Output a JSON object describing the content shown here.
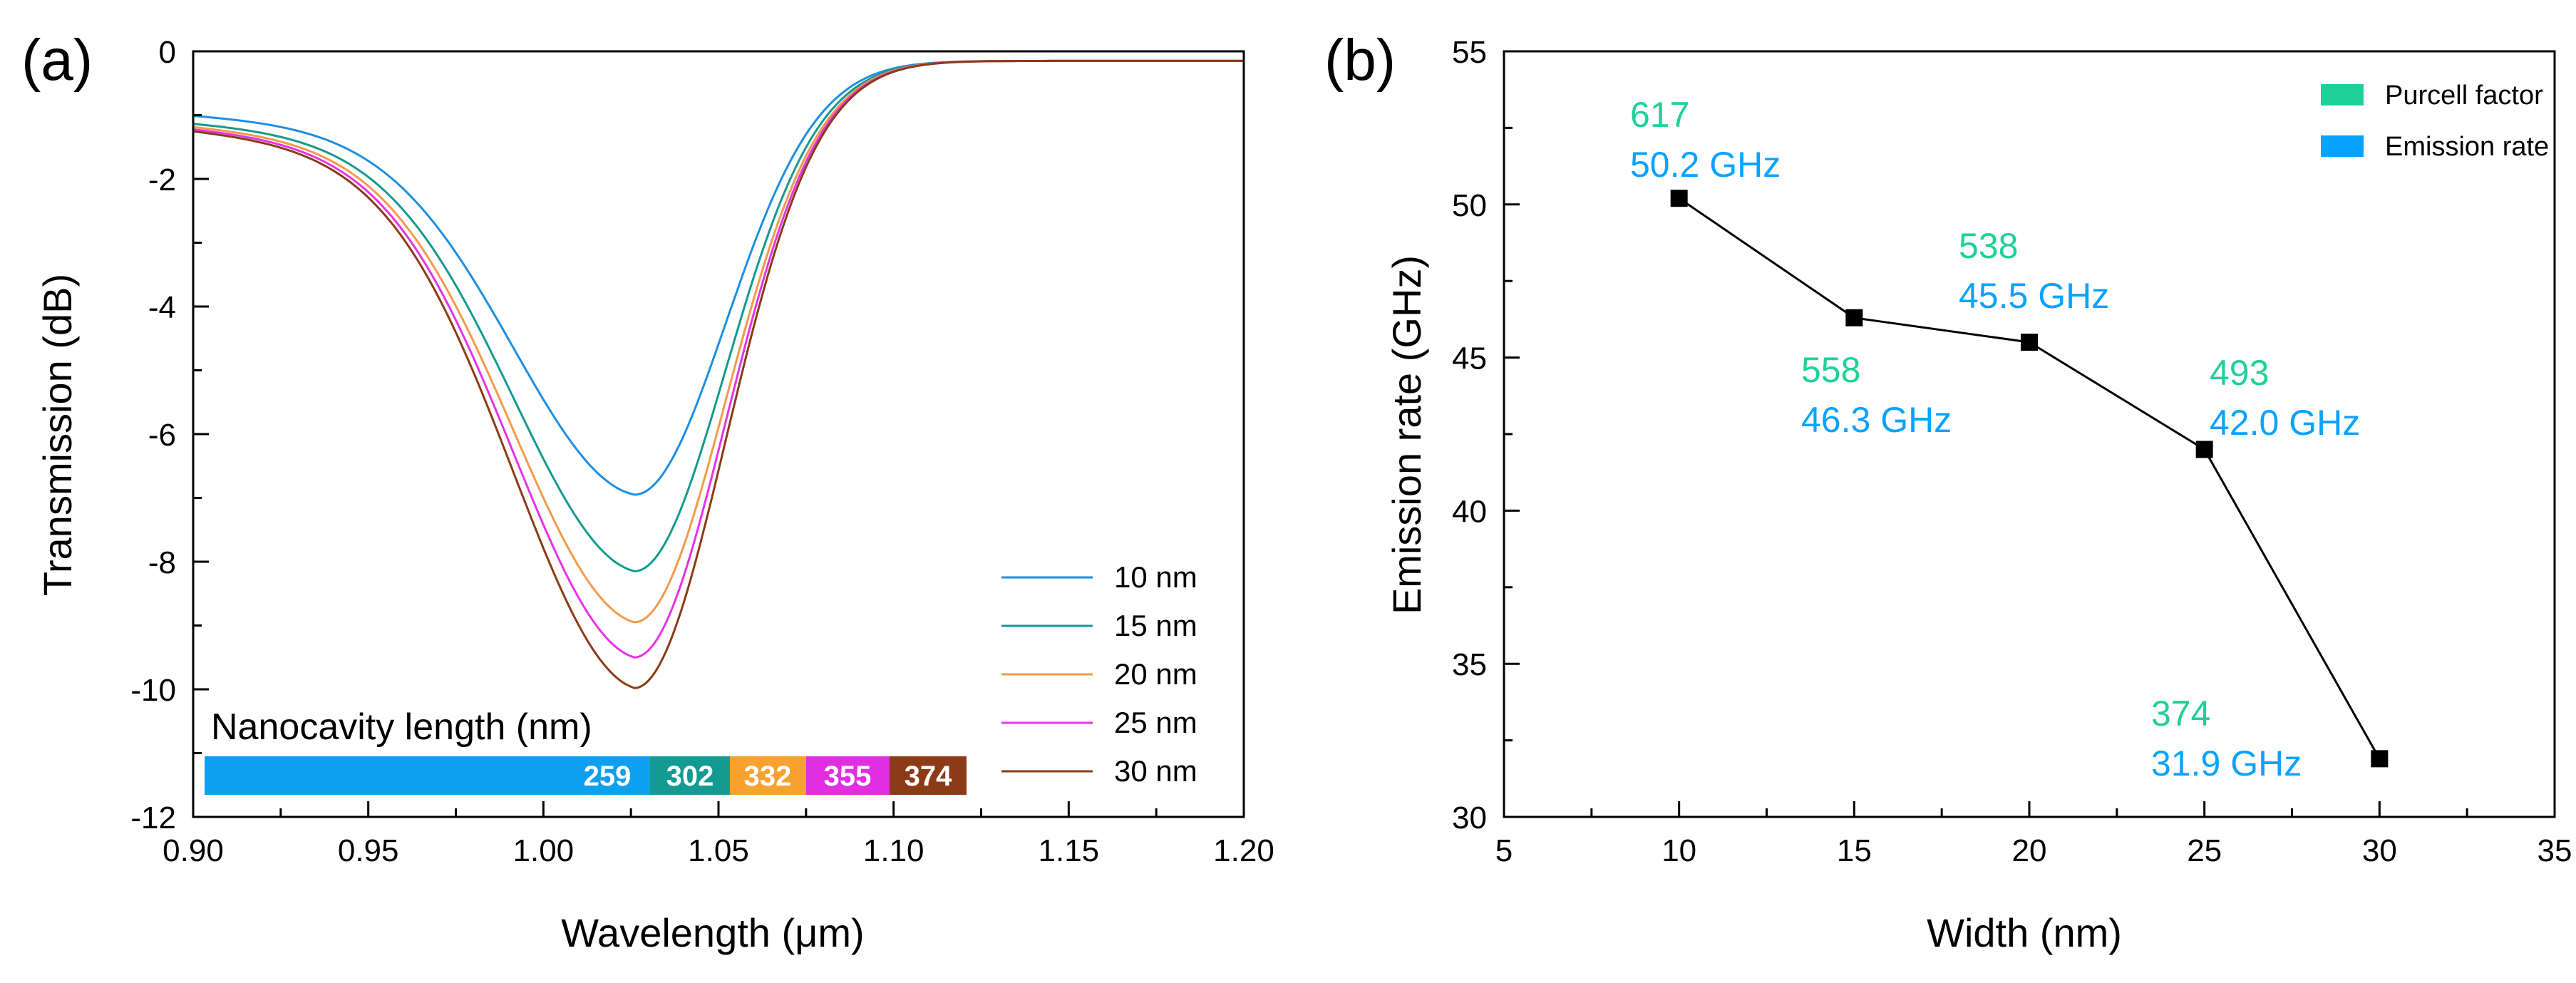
{
  "chart_data": [
    {
      "panel": "(a)",
      "type": "line",
      "xlabel": "Wavelength (μm)",
      "ylabel": "Transmission (dB)",
      "xlim": [
        0.9,
        1.2
      ],
      "ylim": [
        -12,
        0
      ],
      "xticks": [
        "0.90",
        "0.95",
        "1.00",
        "1.05",
        "1.10",
        "1.15",
        "1.20"
      ],
      "yticks": [
        "0",
        "-2",
        "-4",
        "-6",
        "-8",
        "-10",
        "-12"
      ],
      "xtick_values": [
        0.9,
        0.95,
        1.0,
        1.05,
        1.1,
        1.15,
        1.2
      ],
      "ytick_values": [
        0,
        -2,
        -4,
        -6,
        -8,
        -10,
        -12
      ],
      "series": [
        {
          "name": "10 nm",
          "color": "#1c8fe3",
          "center": 1.026,
          "min": -6.95,
          "base": -0.6
        },
        {
          "name": "15 nm",
          "color": "#139a8d",
          "center": 1.026,
          "min": -8.15,
          "base": -0.65
        },
        {
          "name": "20 nm",
          "color": "#f39a4a",
          "center": 1.026,
          "min": -8.95,
          "base": -0.65
        },
        {
          "name": "25 nm",
          "color": "#e733e7",
          "center": 1.026,
          "min": -9.5,
          "base": -0.65
        },
        {
          "name": "30 nm",
          "color": "#8b3b16",
          "center": 1.026,
          "min": -9.98,
          "base": -0.65
        }
      ],
      "legend_position": "bottom-right",
      "inset_bar": {
        "title": "Nanocavity length (nm)",
        "segments": [
          {
            "label": "259",
            "color": "#0ea0f0"
          },
          {
            "label": "302",
            "color": "#149b91"
          },
          {
            "label": "332",
            "color": "#f7a12f"
          },
          {
            "label": "355",
            "color": "#e12ee0"
          },
          {
            "label": "374",
            "color": "#8c3b17"
          }
        ]
      }
    },
    {
      "panel": "(b)",
      "type": "line",
      "xlabel": "Width (nm)",
      "ylabel": "Emission rate (GHz)",
      "xlim": [
        5,
        35
      ],
      "ylim": [
        30,
        55
      ],
      "xticks": [
        "5",
        "10",
        "15",
        "20",
        "25",
        "30",
        "35"
      ],
      "yticks": [
        "30",
        "35",
        "40",
        "45",
        "50",
        "55"
      ],
      "xtick_values": [
        5,
        10,
        15,
        20,
        25,
        30,
        35
      ],
      "ytick_values": [
        30,
        35,
        40,
        45,
        50,
        55
      ],
      "x": [
        10,
        15,
        20,
        25,
        30
      ],
      "y": [
        50.2,
        46.3,
        45.5,
        42.0,
        31.9
      ],
      "annotations": [
        {
          "purcell": "617",
          "rate": "50.2 GHz"
        },
        {
          "purcell": "558",
          "rate": "46.3 GHz"
        },
        {
          "purcell": "538",
          "rate": "45.5 GHz"
        },
        {
          "purcell": "493",
          "rate": "42.0 GHz"
        },
        {
          "purcell": "374",
          "rate": "31.9 GHz"
        }
      ],
      "legend": [
        {
          "name": "Purcell factor",
          "color": "#1fd199"
        },
        {
          "name": "Emission rate",
          "color": "#0aa2ff"
        }
      ],
      "legend_position": "top-right"
    }
  ]
}
